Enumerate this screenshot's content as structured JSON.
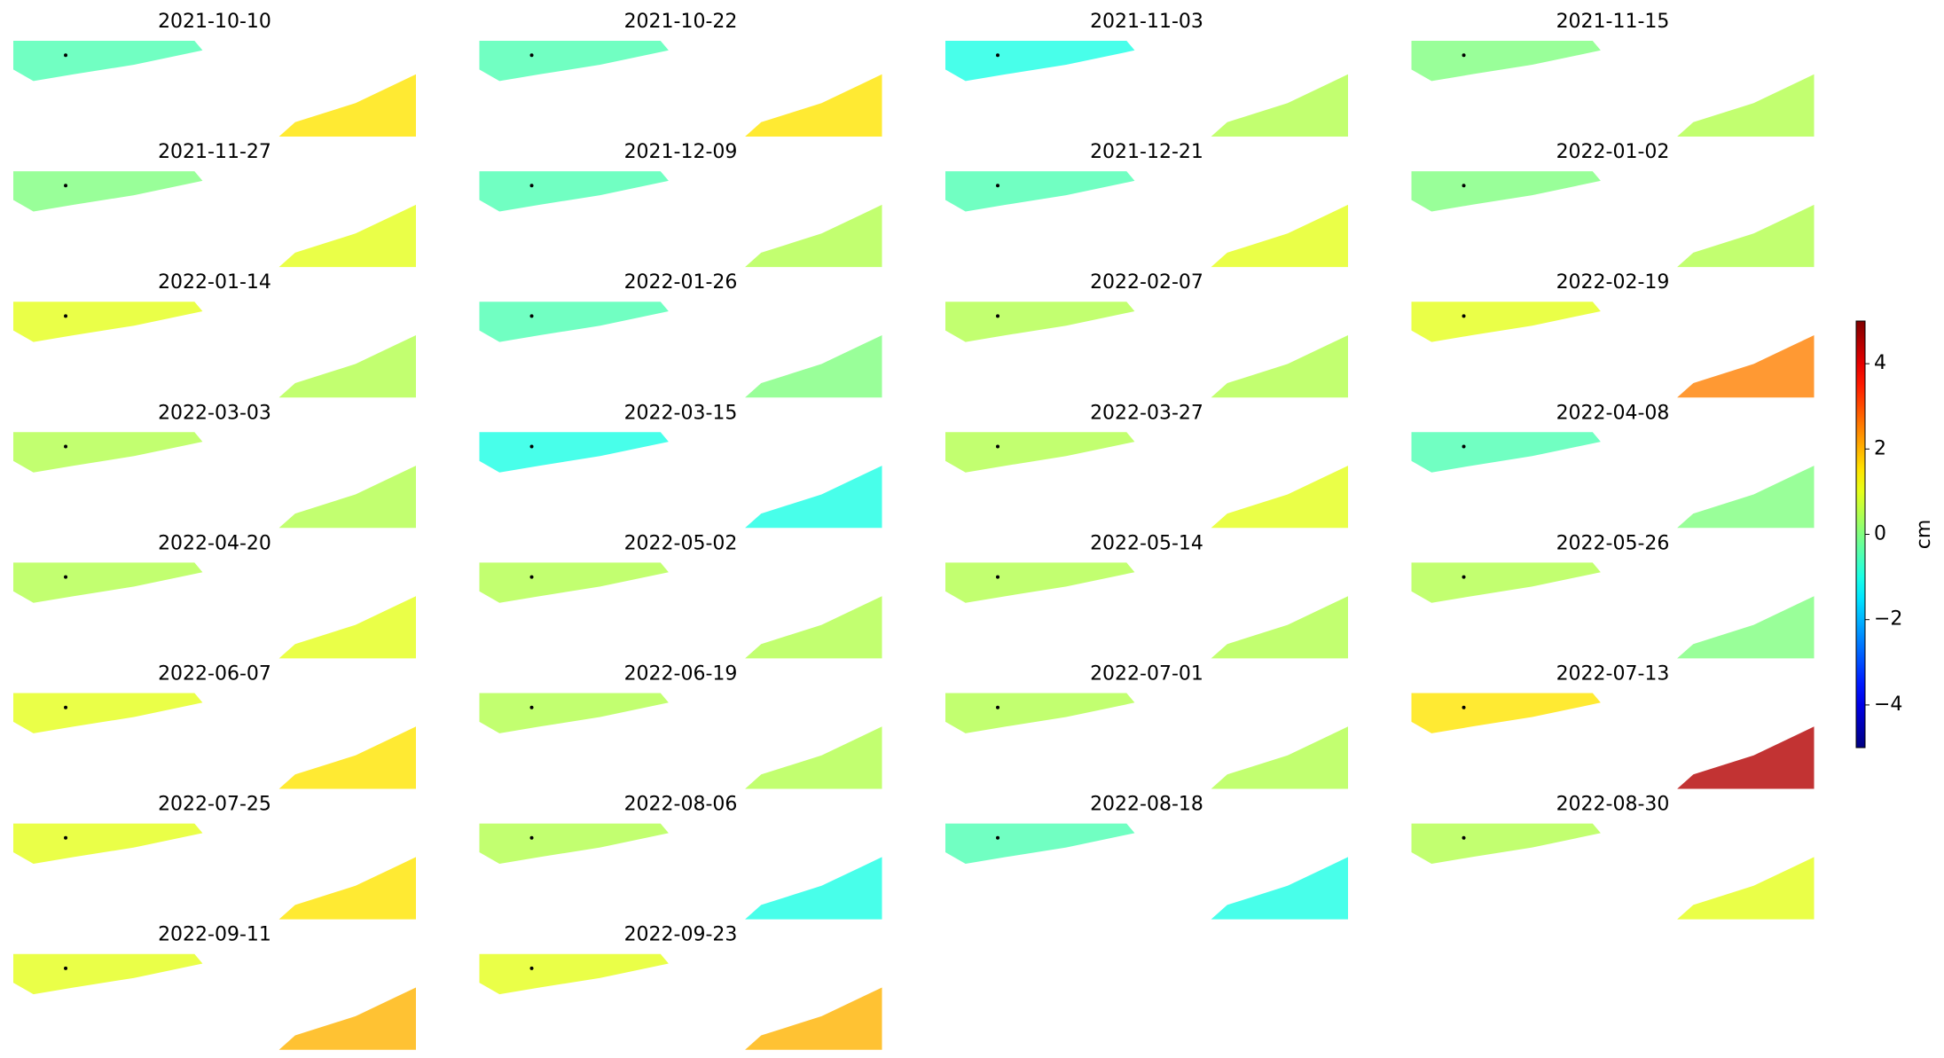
{
  "chart_data": {
    "type": "image-grid",
    "colormap": "jet",
    "clim": [
      -5,
      5
    ],
    "colorbar_label": "cm",
    "colorbar_ticks": [
      {
        "value": -4,
        "label": "−4"
      },
      {
        "value": -2,
        "label": "−2"
      },
      0,
      2,
      4
    ],
    "panels": [
      {
        "title": "2021-10-10",
        "values": [
          -0.5,
          1.5
        ]
      },
      {
        "title": "2021-10-22",
        "values": [
          -0.5,
          1.5
        ]
      },
      {
        "title": "2021-11-03",
        "values": [
          -1,
          0.5
        ]
      },
      {
        "title": "2021-11-15",
        "values": [
          0,
          0.5
        ]
      },
      {
        "title": "2021-11-27",
        "values": [
          0,
          1
        ]
      },
      {
        "title": "2021-12-09",
        "values": [
          -0.5,
          0.5
        ]
      },
      {
        "title": "2021-12-21",
        "values": [
          -0.5,
          1
        ]
      },
      {
        "title": "2022-01-02",
        "values": [
          0,
          0.5
        ]
      },
      {
        "title": "2022-01-14",
        "values": [
          1,
          0.5
        ]
      },
      {
        "title": "2022-01-26",
        "values": [
          -0.5,
          0
        ]
      },
      {
        "title": "2022-02-07",
        "values": [
          0.5,
          0.5
        ]
      },
      {
        "title": "2022-02-19",
        "values": [
          1,
          2.5
        ]
      },
      {
        "title": "2022-03-03",
        "values": [
          0.5,
          0.5
        ]
      },
      {
        "title": "2022-03-15",
        "values": [
          -1,
          -1
        ]
      },
      {
        "title": "2022-03-27",
        "values": [
          0.5,
          1
        ]
      },
      {
        "title": "2022-04-08",
        "values": [
          -0.5,
          0
        ]
      },
      {
        "title": "2022-04-20",
        "values": [
          0.5,
          1
        ]
      },
      {
        "title": "2022-05-02",
        "values": [
          0.5,
          0.5
        ]
      },
      {
        "title": "2022-05-14",
        "values": [
          0.5,
          0.5
        ]
      },
      {
        "title": "2022-05-26",
        "values": [
          0.5,
          0
        ]
      },
      {
        "title": "2022-06-07",
        "values": [
          1,
          1.5
        ]
      },
      {
        "title": "2022-06-19",
        "values": [
          0.5,
          0.5
        ]
      },
      {
        "title": "2022-07-01",
        "values": [
          0.5,
          0.5
        ]
      },
      {
        "title": "2022-07-13",
        "values": [
          1.5,
          4.5
        ]
      },
      {
        "title": "2022-07-25",
        "values": [
          1,
          1.5
        ]
      },
      {
        "title": "2022-08-06",
        "values": [
          0.5,
          -1
        ]
      },
      {
        "title": "2022-08-18",
        "values": [
          -0.5,
          -1
        ]
      },
      {
        "title": "2022-08-30",
        "values": [
          0.5,
          1
        ]
      },
      {
        "title": "2022-09-11",
        "values": [
          1,
          2
        ]
      },
      {
        "title": "2022-09-23",
        "values": [
          1,
          2
        ]
      }
    ]
  }
}
